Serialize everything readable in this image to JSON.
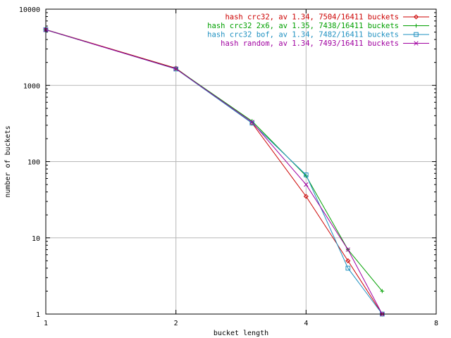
{
  "chart_data": {
    "type": "line",
    "title": "",
    "xlabel": "bucket length",
    "ylabel": "number of buckets",
    "x_scale": "log2",
    "y_scale": "log10",
    "xlim": [
      1,
      8
    ],
    "ylim": [
      1,
      10000
    ],
    "x_ticks": [
      1,
      2,
      4,
      8
    ],
    "x_tick_labels": [
      "1",
      "2",
      "4",
      "8"
    ],
    "y_ticks": [
      1,
      10,
      100,
      1000,
      10000
    ],
    "y_tick_labels": [
      "1",
      "10",
      "100",
      "1000",
      "10000"
    ],
    "grid": true,
    "legend_position": "top-right",
    "series": [
      {
        "name": "hash crc32, av 1.34, 7504/16411 buckets",
        "color": "#cc0000",
        "marker": "diamond",
        "x": [
          1,
          2,
          3,
          4,
          5,
          6
        ],
        "y": [
          5400,
          1680,
          320,
          35,
          5,
          1
        ]
      },
      {
        "name": "hash crc32 2x6, av 1.35, 7438/16411 buckets",
        "color": "#00a000",
        "marker": "plus",
        "x": [
          1,
          2,
          3,
          4,
          5,
          6
        ],
        "y": [
          5350,
          1660,
          340,
          65,
          7,
          2
        ]
      },
      {
        "name": "hash crc32 bof, av 1.34, 7482/16411 buckets",
        "color": "#1e90c0",
        "marker": "square",
        "x": [
          1,
          2,
          3,
          4,
          5,
          6
        ],
        "y": [
          5380,
          1640,
          320,
          67,
          4,
          1
        ]
      },
      {
        "name": "hash random, av 1.34, 7493/16411 buckets",
        "color": "#a000a0",
        "marker": "cross",
        "x": [
          1,
          2,
          3,
          4,
          5,
          6
        ],
        "y": [
          5360,
          1650,
          330,
          50,
          7,
          1
        ]
      }
    ]
  }
}
